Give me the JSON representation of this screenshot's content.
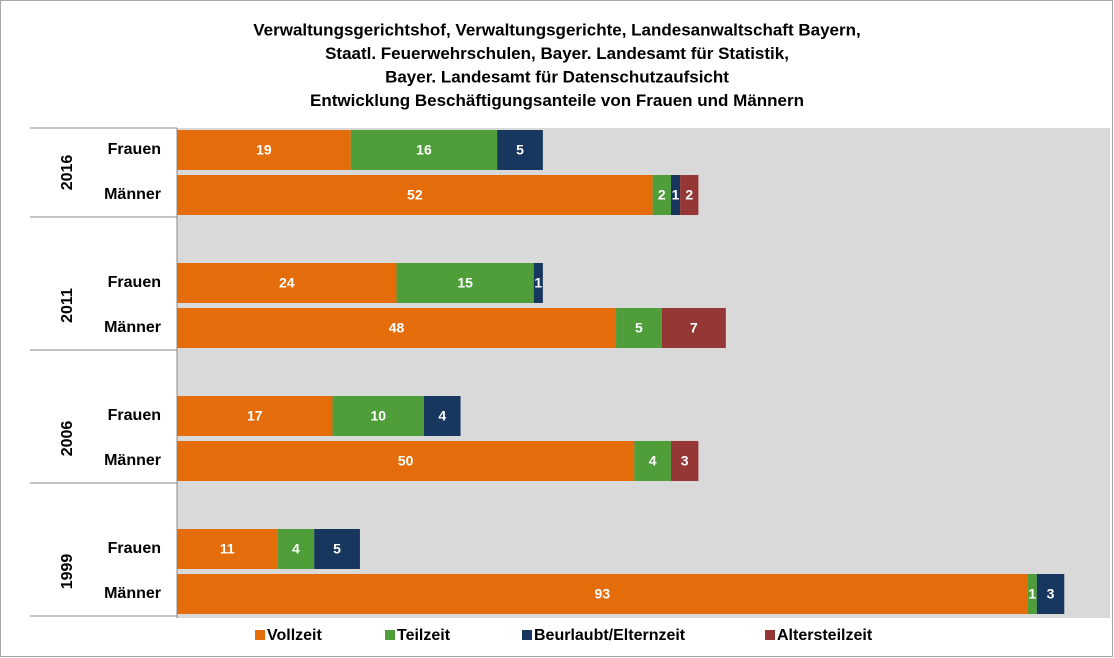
{
  "chart_data": {
    "type": "stacked_barh",
    "title": [
      "Verwaltungsgerichtshof, Verwaltungsgerichte, Landesanwaltschaft Bayern,",
      "Staatl. Feuerwehrschulen, Bayer. Landesamt für Statistik,",
      "Bayer. Landesamt für Datenschutzaufsicht",
      "Entwicklung Beschäftigungsanteile von Frauen und Männern"
    ],
    "groups": [
      "2016",
      "2011",
      "2006",
      "1999"
    ],
    "categories": [
      "Frauen",
      "Männer",
      "Frauen",
      "Männer",
      "Frauen",
      "Männer",
      "Frauen",
      "Männer"
    ],
    "series": [
      {
        "name": "Vollzeit",
        "color": "#e46c0a",
        "values": [
          19,
          52,
          24,
          48,
          17,
          50,
          11,
          93
        ]
      },
      {
        "name": "Teilzeit",
        "color": "#4f9e3a",
        "values": [
          16,
          2,
          15,
          5,
          10,
          4,
          4,
          1
        ]
      },
      {
        "name": "Beurlaubt/Elternzeit",
        "color": "#17375e",
        "values": [
          5,
          1,
          1,
          null,
          4,
          null,
          5,
          3
        ]
      },
      {
        "name": "Altersteilzeit",
        "color": "#953735",
        "values": [
          null,
          2,
          null,
          7,
          null,
          3,
          null,
          null
        ]
      }
    ],
    "xlim": [
      0,
      102
    ],
    "legend": "bottom"
  }
}
